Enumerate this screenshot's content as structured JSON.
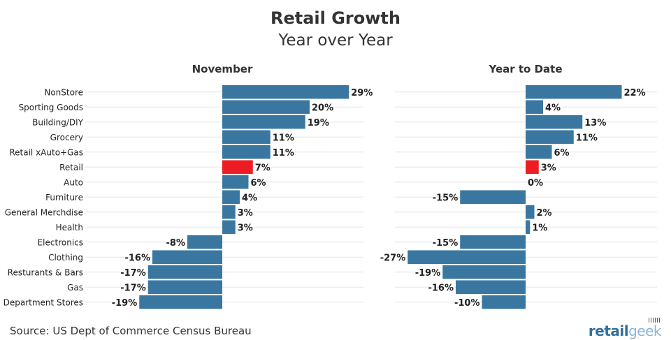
{
  "title": "Retail Growth",
  "subtitle": "Year over Year",
  "source": "Source: US Dept of Commerce Census Bureau",
  "logo": {
    "text_part1": "retail",
    "text_part2": "geek"
  },
  "colors": {
    "bar": "#3a77a0",
    "highlight": "#ee1c24",
    "grid": "#e3e3e3"
  },
  "chart_data": [
    {
      "type": "bar",
      "orientation": "horizontal",
      "title": "November",
      "categories": [
        "NonStore",
        "Sporting Goods",
        "Building/DIY",
        "Grocery",
        "Retail xAuto+Gas",
        "Retail",
        "Auto",
        "Furniture",
        "General Merchdise",
        "Health",
        "Electronics",
        "Clothing",
        "Resturants & Bars",
        "Gas",
        "Department Stores"
      ],
      "values": [
        29,
        20,
        19,
        11,
        11,
        7,
        6,
        4,
        3,
        3,
        -8,
        -16,
        -17,
        -17,
        -19
      ],
      "value_labels": [
        "29%",
        "20%",
        "19%",
        "11%",
        "11%",
        "7%",
        "6%",
        "4%",
        "3%",
        "3%",
        "-8%",
        "-16%",
        "-17%",
        "-17%",
        "-19%"
      ],
      "highlight": "Retail",
      "xlim": [
        -19,
        29
      ]
    },
    {
      "type": "bar",
      "orientation": "horizontal",
      "title": "Year to Date",
      "categories": [
        "NonStore",
        "Sporting Goods",
        "Building/DIY",
        "Grocery",
        "Retail xAuto+Gas",
        "Retail",
        "Auto",
        "Furniture",
        "General Merchdise",
        "Health",
        "Electronics",
        "Clothing",
        "Resturants & Bars",
        "Gas",
        "Department Stores"
      ],
      "values": [
        22,
        4,
        13,
        11,
        6,
        3,
        0,
        -15,
        2,
        1,
        -15,
        -27,
        -19,
        -16,
        -10
      ],
      "value_labels": [
        "22%",
        "4%",
        "13%",
        "11%",
        "6%",
        "3%",
        "0%",
        "-15%",
        "2%",
        "1%",
        "-15%",
        "-27%",
        "-19%",
        "-16%",
        "-10%"
      ],
      "highlight": "Retail",
      "xlim": [
        -27,
        22
      ]
    }
  ]
}
